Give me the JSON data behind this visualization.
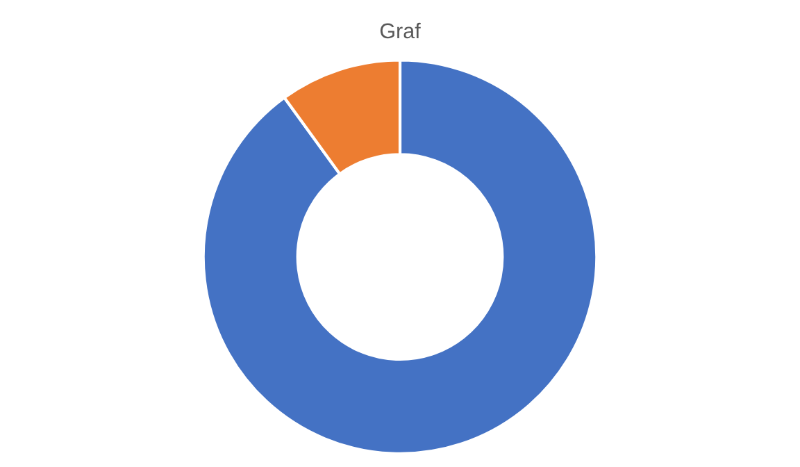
{
  "chart_data": {
    "type": "donut",
    "title": "Graf",
    "categories": [
      null,
      null
    ],
    "values": [
      90,
      10
    ],
    "colors": [
      "#4472c4",
      "#ed7d31"
    ]
  }
}
